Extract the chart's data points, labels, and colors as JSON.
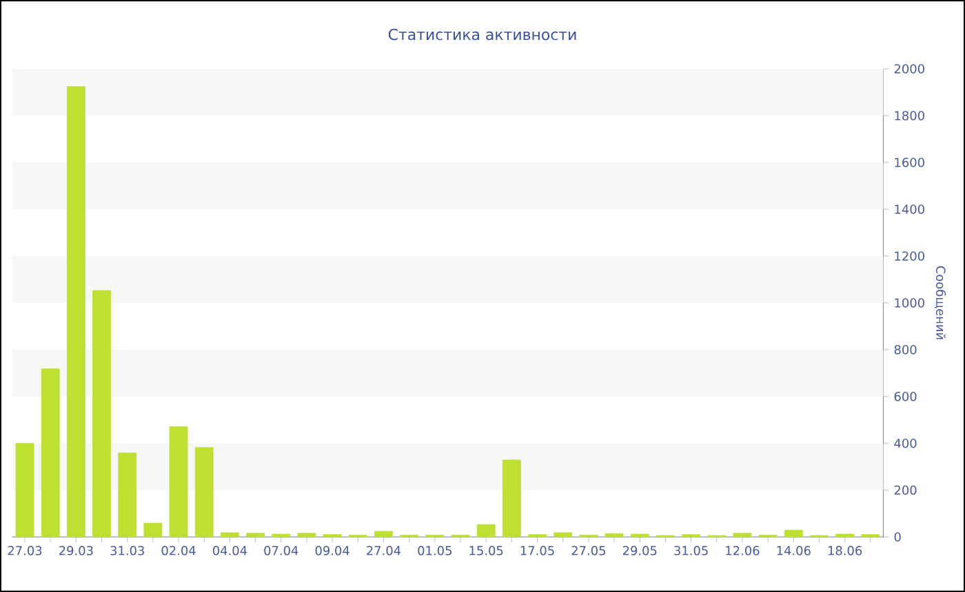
{
  "chart_data": {
    "type": "bar",
    "title": "Статистика активности",
    "ylabel": "Сообщений",
    "categories": [
      "27.03",
      null,
      "29.03",
      null,
      "31.03",
      null,
      "02.04",
      null,
      "04.04",
      null,
      "07.04",
      null,
      "09.04",
      null,
      "27.04",
      null,
      "01.05",
      null,
      "15.05",
      null,
      "17.05",
      null,
      "27.05",
      null,
      "29.05",
      null,
      "31.05",
      null,
      "12.06",
      null,
      "14.06",
      null,
      "18.06",
      null
    ],
    "values": [
      400,
      718,
      1924,
      1053,
      359,
      59,
      471,
      382,
      18,
      16,
      12,
      16,
      10,
      8,
      24,
      8,
      8,
      8,
      53,
      329,
      10,
      18,
      8,
      14,
      12,
      6,
      10,
      6,
      16,
      8,
      29,
      6,
      12,
      10
    ],
    "color": "#bde031",
    "ylim": [
      0,
      2000
    ],
    "yticks": [
      0,
      200,
      400,
      600,
      800,
      1000,
      1200,
      1400,
      1600,
      1800,
      2000
    ],
    "bands": [
      {
        "axis": "y",
        "from": 200,
        "to": 400,
        "color": "#f7f7f7"
      },
      {
        "axis": "y",
        "from": 600,
        "to": 800,
        "color": "#f7f7f7"
      },
      {
        "axis": "y",
        "from": 1000,
        "to": 1200,
        "color": "#f7f7f7"
      },
      {
        "axis": "y",
        "from": 1400,
        "to": 1600,
        "color": "#f7f7f7"
      },
      {
        "axis": "y",
        "from": 1800,
        "to": 2000,
        "color": "#f7f7f7"
      }
    ]
  }
}
